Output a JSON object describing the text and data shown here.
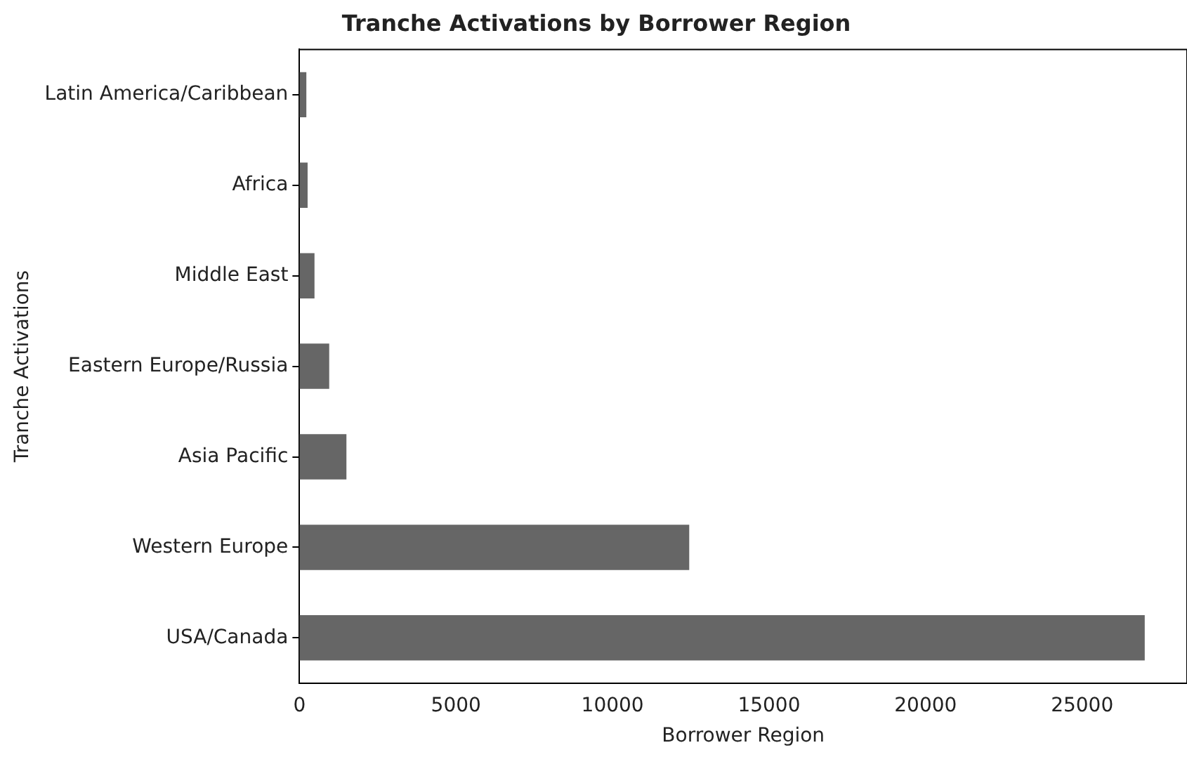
{
  "chart_data": {
    "type": "bar",
    "orientation": "horizontal",
    "title": "Tranche Activations by Borrower Region",
    "xlabel": "Borrower Region",
    "ylabel": "Tranche Activations",
    "categories": [
      "Latin America/Caribbean",
      "Africa",
      "Middle East",
      "Eastern Europe/Russia",
      "Asia Pacific",
      "Western Europe",
      "USA/Canada"
    ],
    "values": [
      220,
      260,
      480,
      950,
      1500,
      12450,
      27000
    ],
    "color": "#666666",
    "xlim": [
      0,
      28350
    ],
    "xticks": [
      0,
      5000,
      10000,
      15000,
      20000,
      25000
    ],
    "grid": false,
    "legend": false
  }
}
